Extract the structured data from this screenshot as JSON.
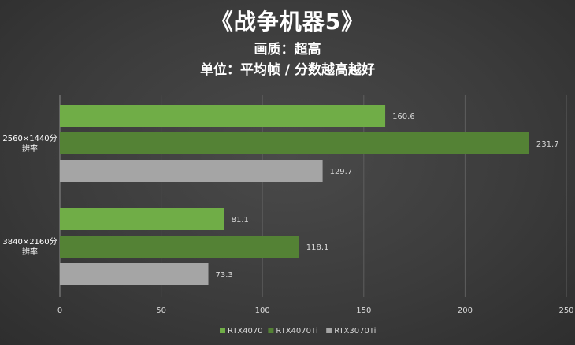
{
  "header": {
    "title": "《战争机器5》",
    "subtitle": "画质：超高",
    "subtitle2": "单位：平均帧 / 分数越高越好"
  },
  "chart_data": {
    "type": "bar",
    "orientation": "horizontal",
    "categories": [
      [
        "2560×1440分",
        "辨率"
      ],
      [
        "3840×2160分",
        "辨率"
      ]
    ],
    "series": [
      {
        "name": "RTX4070",
        "color": "#70ad47",
        "values": [
          160.6,
          81.1
        ],
        "labels": [
          "160.6",
          "81.1"
        ]
      },
      {
        "name": "RTX4070Ti",
        "color": "#548235",
        "values": [
          231.7,
          118.1
        ],
        "labels": [
          "231.7",
          "118.1"
        ]
      },
      {
        "name": "RTX3070Ti",
        "color": "#a5a5a5",
        "values": [
          129.7,
          73.3
        ],
        "labels": [
          "129.7",
          "73.3"
        ]
      }
    ],
    "xlim": [
      0,
      250
    ],
    "xticks": [
      0,
      50,
      100,
      150,
      200,
      250
    ],
    "grid": "vertical",
    "legend_position": "bottom",
    "title": "《战争机器5》",
    "subtitle": "画质：超高 / 单位：平均帧 / 分数越高越好"
  }
}
